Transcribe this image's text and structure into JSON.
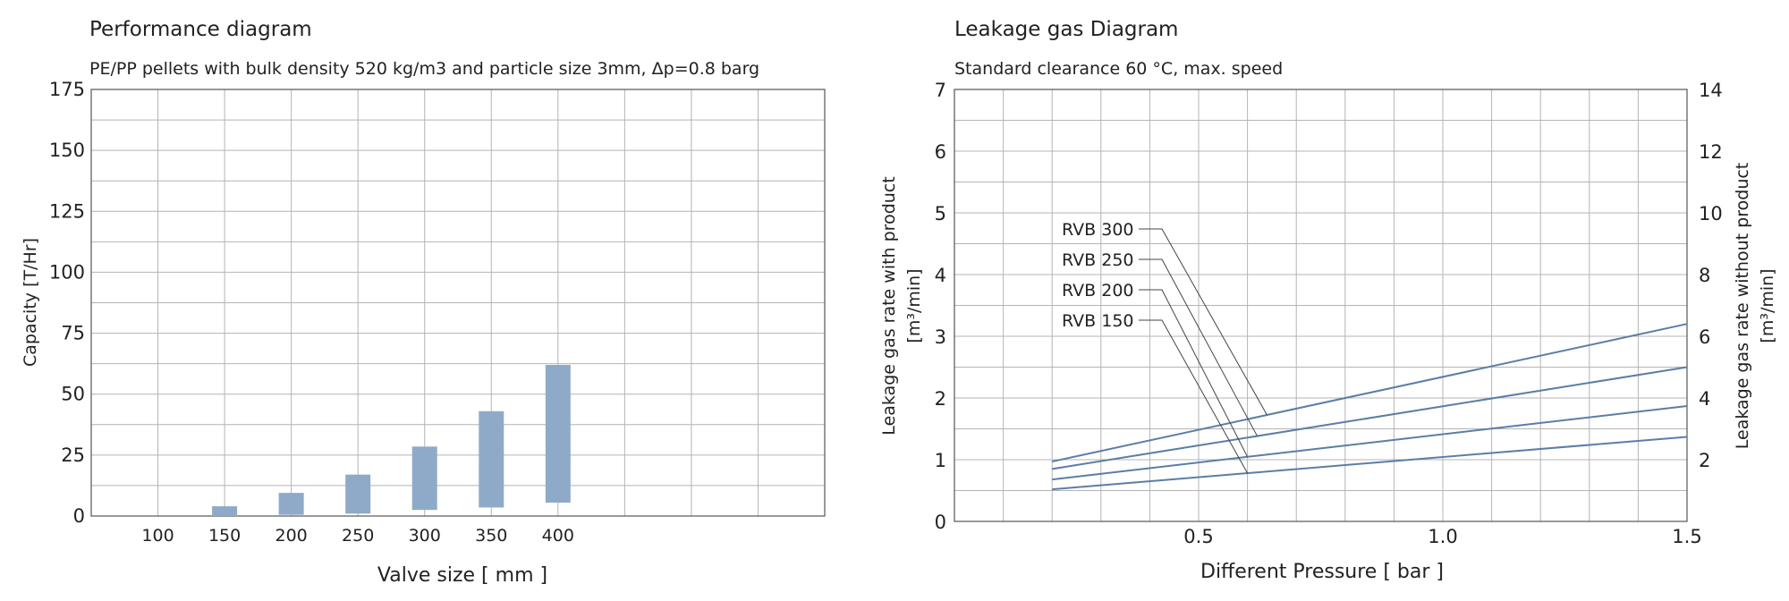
{
  "chart_data": [
    {
      "type": "bar",
      "title": "Performance diagram",
      "subtitle": "PE/PP pellets with bulk density 520 kg/m3 and particle size 3mm, Δp=0.8 barg",
      "xlabel": "Valve size [ mm ]",
      "ylabel": "Capacity [T/Hr]",
      "ylim": [
        0,
        175
      ],
      "yticks": [
        0,
        25,
        50,
        75,
        100,
        125,
        150,
        175
      ],
      "categories": [
        "100",
        "150",
        "200",
        "250",
        "300",
        "350",
        "400"
      ],
      "range_bars": [
        {
          "category": "150",
          "low": 0,
          "high": 4
        },
        {
          "category": "200",
          "low": 0.5,
          "high": 9.5
        },
        {
          "category": "250",
          "low": 1,
          "high": 17
        },
        {
          "category": "300",
          "low": 2.5,
          "high": 28.5
        },
        {
          "category": "350",
          "low": 3.5,
          "high": 43
        },
        {
          "category": "400",
          "low": 5.5,
          "high": 62
        }
      ],
      "grid": true,
      "bar_color": "#8faac8"
    },
    {
      "type": "line",
      "title": "Leakage gas Diagram",
      "subtitle": "Standard clearance  60 °C, max. speed",
      "xlabel": "Different Pressure [ bar ]",
      "ylabel_left": [
        "Leakage gas rate with product",
        "[m³/min]"
      ],
      "ylabel_right": [
        "Leakage gas rate without product",
        "[m³/min]"
      ],
      "xlim": [
        0,
        1.5
      ],
      "xticks": [
        "0.5",
        "1.0",
        "1.5"
      ],
      "ylim_left": [
        0,
        7
      ],
      "yticks_left": [
        0,
        1,
        2,
        3,
        4,
        5,
        6,
        7
      ],
      "ylim_right": [
        0,
        14
      ],
      "yticks_right": [
        2,
        4,
        6,
        8,
        10,
        12,
        14
      ],
      "series": [
        {
          "name": "RVB 300",
          "x": [
            0.2,
            1.5
          ],
          "y": [
            0.97,
            3.2
          ]
        },
        {
          "name": "RVB 250",
          "x": [
            0.2,
            1.5
          ],
          "y": [
            0.85,
            2.5
          ]
        },
        {
          "name": "RVB 200",
          "x": [
            0.2,
            1.5
          ],
          "y": [
            0.68,
            1.87
          ]
        },
        {
          "name": "RVB 150",
          "x": [
            0.2,
            1.5
          ],
          "y": [
            0.52,
            1.37
          ]
        }
      ],
      "grid": true,
      "line_color": "#5a7ea6"
    }
  ]
}
